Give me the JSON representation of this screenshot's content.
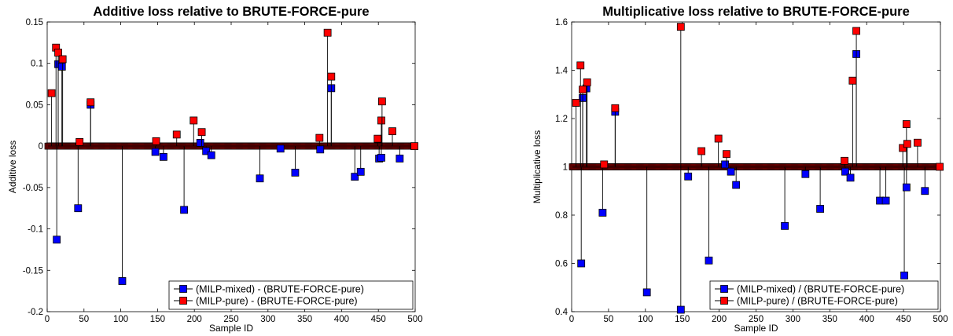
{
  "chart_data": [
    {
      "type": "stem",
      "title": "Additive loss relative to BRUTE-FORCE-pure",
      "xlabel": "Sample ID",
      "ylabel": "Additive loss",
      "xlim": [
        0,
        500
      ],
      "ylim": [
        -0.2,
        0.15
      ],
      "baseline": 0,
      "xticks": [
        0,
        50,
        100,
        150,
        200,
        250,
        300,
        350,
        400,
        450,
        500
      ],
      "yticks": [
        -0.2,
        -0.15,
        -0.1,
        -0.05,
        0,
        0.05,
        0.1,
        0.15
      ],
      "ytick_labels": [
        "-0.2",
        "-0.15",
        "-0.1",
        "-0.05",
        "0",
        "0.05",
        "0.1",
        "0.15"
      ],
      "legend_position": "bottom-right",
      "series": [
        {
          "name": "(MILP-mixed) - (BRUTE-FORCE-pure)",
          "color": "#0000ff",
          "points": [
            [
              13,
              -0.113
            ],
            [
              15,
              0.099
            ],
            [
              20,
              0.096
            ],
            [
              42,
              -0.075
            ],
            [
              59,
              0.05
            ],
            [
              102,
              -0.163
            ],
            [
              147,
              -0.007
            ],
            [
              158,
              -0.013
            ],
            [
              186,
              -0.077
            ],
            [
              208,
              0.004
            ],
            [
              216,
              -0.006
            ],
            [
              223,
              -0.011
            ],
            [
              289,
              -0.039
            ],
            [
              317,
              -0.003
            ],
            [
              337,
              -0.032
            ],
            [
              371,
              -0.004
            ],
            [
              386,
              0.07
            ],
            [
              418,
              -0.037
            ],
            [
              426,
              -0.031
            ],
            [
              451,
              -0.015
            ],
            [
              454,
              -0.014
            ],
            [
              479,
              -0.015
            ]
          ]
        },
        {
          "name": "(MILP-pure) - (BRUTE-FORCE-pure)",
          "color": "#ff0000",
          "points": [
            [
              6,
              0.064
            ],
            [
              12,
              0.119
            ],
            [
              15,
              0.113
            ],
            [
              21,
              0.105
            ],
            [
              44,
              0.005
            ],
            [
              59,
              0.053
            ],
            [
              148,
              0.006
            ],
            [
              176,
              0.014
            ],
            [
              199,
              0.031
            ],
            [
              210,
              0.017
            ],
            [
              370,
              0.01
            ],
            [
              381,
              0.137
            ],
            [
              386,
              0.084
            ],
            [
              449,
              0.009
            ],
            [
              454,
              0.031
            ],
            [
              455,
              0.054
            ],
            [
              469,
              0.018
            ],
            [
              499,
              0.0
            ]
          ]
        }
      ]
    },
    {
      "type": "stem",
      "title": "Multiplicative loss relative to BRUTE-FORCE-pure",
      "xlabel": "Sample ID",
      "ylabel": "Multiplicative loss",
      "xlim": [
        0,
        500
      ],
      "ylim": [
        0.4,
        1.6
      ],
      "baseline": 1,
      "xticks": [
        0,
        50,
        100,
        150,
        200,
        250,
        300,
        350,
        400,
        450,
        500
      ],
      "yticks": [
        0.4,
        0.6,
        0.8,
        1,
        1.2,
        1.4,
        1.6
      ],
      "ytick_labels": [
        "0.4",
        "0.6",
        "0.8",
        "1",
        "1.2",
        "1.4",
        "1.6"
      ],
      "legend_position": "bottom-right",
      "series": [
        {
          "name": "(MILP-mixed) / (BRUTE-FORCE-pure)",
          "color": "#0000ff",
          "points": [
            [
              13,
              0.6
            ],
            [
              15,
              1.285
            ],
            [
              20,
              1.325
            ],
            [
              42,
              0.81
            ],
            [
              59,
              1.228
            ],
            [
              102,
              0.48
            ],
            [
              148,
              0.408
            ],
            [
              158,
              0.96
            ],
            [
              186,
              0.612
            ],
            [
              208,
              1.01
            ],
            [
              216,
              0.98
            ],
            [
              223,
              0.925
            ],
            [
              289,
              0.755
            ],
            [
              317,
              0.97
            ],
            [
              337,
              0.826
            ],
            [
              371,
              0.98
            ],
            [
              378,
              0.955
            ],
            [
              386,
              1.467
            ],
            [
              418,
              0.86
            ],
            [
              426,
              0.86
            ],
            [
              451,
              0.55
            ],
            [
              454,
              0.915
            ],
            [
              479,
              0.9
            ]
          ]
        },
        {
          "name": "(MILP-pure) / (BRUTE-FORCE-pure)",
          "color": "#ff0000",
          "points": [
            [
              6,
              1.265
            ],
            [
              12,
              1.42
            ],
            [
              15,
              1.32
            ],
            [
              21,
              1.35
            ],
            [
              44,
              1.01
            ],
            [
              59,
              1.243
            ],
            [
              148,
              1.58
            ],
            [
              176,
              1.065
            ],
            [
              199,
              1.117
            ],
            [
              210,
              1.053
            ],
            [
              370,
              1.025
            ],
            [
              381,
              1.357
            ],
            [
              386,
              1.563
            ],
            [
              449,
              1.078
            ],
            [
              454,
              1.177
            ],
            [
              455,
              1.095
            ],
            [
              469,
              1.1
            ],
            [
              499,
              1.0
            ]
          ]
        }
      ]
    }
  ]
}
